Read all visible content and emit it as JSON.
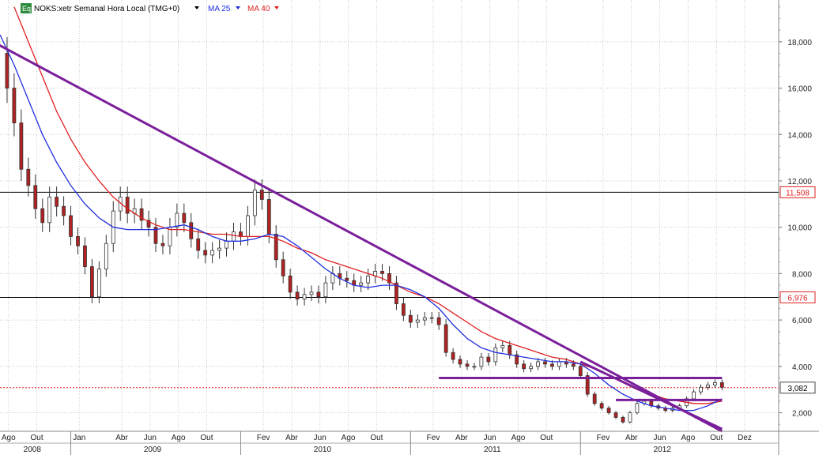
{
  "header": {
    "badge": "Eq",
    "title": "NOKS:xetr Semanal Hora Local (TMG+0)",
    "ma25_label": "MA 25",
    "ma40_label": "MA 40"
  },
  "colors": {
    "ma25": "#2030e0",
    "ma40": "#e02020",
    "trendline": "#7a1f9a",
    "candle_up": "#ffffff",
    "candle_down": "#b22222",
    "grid": "#c8c8c8",
    "hline": "#000000",
    "price_tag_red": "#e02020",
    "badge_bg": "#2e8b3e"
  },
  "chart_data": {
    "type": "line",
    "title": "NOKS:xetr Semanal Hora Local (TMG+0)",
    "ylim": [
      1.2,
      19.8
    ],
    "y_ticks": [
      "2,000",
      "4,000",
      "6,000",
      "8,000",
      "10,000",
      "12,000",
      "14,000",
      "16,000",
      "18,000"
    ],
    "month_ticks": [
      {
        "label": "Ago",
        "t": 0.6
      },
      {
        "label": "Out",
        "t": 2.6
      },
      {
        "label": "Jan",
        "t": 5.6
      },
      {
        "label": "Abr",
        "t": 8.6
      },
      {
        "label": "Jun",
        "t": 10.6
      },
      {
        "label": "Ago",
        "t": 12.6
      },
      {
        "label": "Out",
        "t": 14.6
      },
      {
        "label": "Fev",
        "t": 18.6
      },
      {
        "label": "Abr",
        "t": 20.6
      },
      {
        "label": "Jun",
        "t": 22.6
      },
      {
        "label": "Ago",
        "t": 24.6
      },
      {
        "label": "Out",
        "t": 26.6
      },
      {
        "label": "Fev",
        "t": 30.6
      },
      {
        "label": "Abr",
        "t": 32.6
      },
      {
        "label": "Jun",
        "t": 34.6
      },
      {
        "label": "Ago",
        "t": 36.6
      },
      {
        "label": "Out",
        "t": 38.6
      },
      {
        "label": "Fev",
        "t": 42.6
      },
      {
        "label": "Abr",
        "t": 44.6
      },
      {
        "label": "Jun",
        "t": 46.6
      },
      {
        "label": "Ago",
        "t": 48.6
      },
      {
        "label": "Out",
        "t": 50.6
      },
      {
        "label": "Dez",
        "t": 52.6
      }
    ],
    "year_ticks": [
      {
        "label": "2008",
        "t": 2.5
      },
      {
        "label": "2009",
        "t": 11.0
      },
      {
        "label": "2010",
        "t": 23.0
      },
      {
        "label": "2011",
        "t": 35.0
      },
      {
        "label": "2012",
        "t": 47.0
      }
    ],
    "year_dividers": [
      5.0,
      17.0,
      29.0,
      41.0
    ],
    "t_range": [
      0,
      55
    ],
    "price_series": [
      {
        "t": 0.0,
        "v": 17.5
      },
      {
        "t": 0.5,
        "v": 16.0
      },
      {
        "t": 1.0,
        "v": 14.5
      },
      {
        "t": 1.5,
        "v": 12.5
      },
      {
        "t": 2.0,
        "v": 11.8
      },
      {
        "t": 2.5,
        "v": 10.8
      },
      {
        "t": 3.0,
        "v": 10.2
      },
      {
        "t": 3.5,
        "v": 11.3
      },
      {
        "t": 4.0,
        "v": 10.9
      },
      {
        "t": 4.5,
        "v": 10.5
      },
      {
        "t": 5.0,
        "v": 9.6
      },
      {
        "t": 5.5,
        "v": 9.2
      },
      {
        "t": 6.0,
        "v": 8.3
      },
      {
        "t": 6.5,
        "v": 7.0
      },
      {
        "t": 7.0,
        "v": 8.2
      },
      {
        "t": 7.5,
        "v": 9.3
      },
      {
        "t": 8.0,
        "v": 10.7
      },
      {
        "t": 8.5,
        "v": 11.3
      },
      {
        "t": 9.0,
        "v": 10.6
      },
      {
        "t": 9.5,
        "v": 10.8
      },
      {
        "t": 10.0,
        "v": 10.3
      },
      {
        "t": 10.5,
        "v": 10.0
      },
      {
        "t": 11.0,
        "v": 9.3
      },
      {
        "t": 11.5,
        "v": 9.2
      },
      {
        "t": 12.0,
        "v": 10.0
      },
      {
        "t": 12.5,
        "v": 10.6
      },
      {
        "t": 13.0,
        "v": 10.2
      },
      {
        "t": 13.5,
        "v": 9.5
      },
      {
        "t": 14.0,
        "v": 9.0
      },
      {
        "t": 14.5,
        "v": 8.8
      },
      {
        "t": 15.0,
        "v": 9.0
      },
      {
        "t": 15.5,
        "v": 9.1
      },
      {
        "t": 16.0,
        "v": 9.4
      },
      {
        "t": 16.5,
        "v": 9.8
      },
      {
        "t": 17.0,
        "v": 9.6
      },
      {
        "t": 17.5,
        "v": 10.5
      },
      {
        "t": 18.0,
        "v": 11.6
      },
      {
        "t": 18.5,
        "v": 11.2
      },
      {
        "t": 19.0,
        "v": 9.7
      },
      {
        "t": 19.5,
        "v": 8.6
      },
      {
        "t": 20.0,
        "v": 7.9
      },
      {
        "t": 20.5,
        "v": 7.2
      },
      {
        "t": 21.0,
        "v": 6.9
      },
      {
        "t": 21.5,
        "v": 7.1
      },
      {
        "t": 22.0,
        "v": 7.2
      },
      {
        "t": 22.5,
        "v": 7.0
      },
      {
        "t": 23.0,
        "v": 7.6
      },
      {
        "t": 23.5,
        "v": 8.0
      },
      {
        "t": 24.0,
        "v": 7.8
      },
      {
        "t": 24.5,
        "v": 7.7
      },
      {
        "t": 25.0,
        "v": 7.5
      },
      {
        "t": 25.5,
        "v": 7.6
      },
      {
        "t": 26.0,
        "v": 7.9
      },
      {
        "t": 26.5,
        "v": 8.1
      },
      {
        "t": 27.0,
        "v": 8.0
      },
      {
        "t": 27.5,
        "v": 7.6
      },
      {
        "t": 28.0,
        "v": 6.7
      },
      {
        "t": 28.5,
        "v": 6.2
      },
      {
        "t": 29.0,
        "v": 5.9
      },
      {
        "t": 29.5,
        "v": 6.0
      },
      {
        "t": 30.0,
        "v": 6.1
      },
      {
        "t": 30.5,
        "v": 6.1
      },
      {
        "t": 31.0,
        "v": 5.8
      },
      {
        "t": 31.5,
        "v": 4.6
      },
      {
        "t": 32.0,
        "v": 4.3
      },
      {
        "t": 32.5,
        "v": 4.1
      },
      {
        "t": 33.0,
        "v": 4.0
      },
      {
        "t": 33.5,
        "v": 4.0
      },
      {
        "t": 34.0,
        "v": 4.4
      },
      {
        "t": 34.5,
        "v": 4.2
      },
      {
        "t": 35.0,
        "v": 4.8
      },
      {
        "t": 35.5,
        "v": 4.9
      },
      {
        "t": 36.0,
        "v": 4.5
      },
      {
        "t": 36.5,
        "v": 4.1
      },
      {
        "t": 37.0,
        "v": 3.9
      },
      {
        "t": 37.5,
        "v": 4.0
      },
      {
        "t": 38.0,
        "v": 4.2
      },
      {
        "t": 38.5,
        "v": 4.1
      },
      {
        "t": 39.0,
        "v": 4.0
      },
      {
        "t": 39.5,
        "v": 4.2
      },
      {
        "t": 40.0,
        "v": 4.1
      },
      {
        "t": 40.5,
        "v": 4.0
      },
      {
        "t": 41.0,
        "v": 3.6
      },
      {
        "t": 41.5,
        "v": 2.8
      },
      {
        "t": 42.0,
        "v": 2.4
      },
      {
        "t": 42.5,
        "v": 2.2
      },
      {
        "t": 43.0,
        "v": 2.0
      },
      {
        "t": 43.5,
        "v": 1.8
      },
      {
        "t": 44.0,
        "v": 1.6
      },
      {
        "t": 44.5,
        "v": 2.0
      },
      {
        "t": 45.0,
        "v": 2.4
      },
      {
        "t": 45.5,
        "v": 2.5
      },
      {
        "t": 46.0,
        "v": 2.3
      },
      {
        "t": 46.5,
        "v": 2.2
      },
      {
        "t": 47.0,
        "v": 2.1
      },
      {
        "t": 47.5,
        "v": 2.2
      },
      {
        "t": 48.0,
        "v": 2.3
      },
      {
        "t": 48.5,
        "v": 2.6
      },
      {
        "t": 49.0,
        "v": 2.9
      },
      {
        "t": 49.5,
        "v": 3.1
      },
      {
        "t": 50.0,
        "v": 3.2
      },
      {
        "t": 50.5,
        "v": 3.3
      },
      {
        "t": 51.0,
        "v": 3.1
      }
    ],
    "ma25": [
      {
        "t": 0.0,
        "v": 18.3
      },
      {
        "t": 1.0,
        "v": 17.0
      },
      {
        "t": 2.0,
        "v": 15.5
      },
      {
        "t": 3.0,
        "v": 14.0
      },
      {
        "t": 4.0,
        "v": 12.8
      },
      {
        "t": 5.0,
        "v": 11.8
      },
      {
        "t": 6.0,
        "v": 11.0
      },
      {
        "t": 7.0,
        "v": 10.4
      },
      {
        "t": 8.0,
        "v": 10.0
      },
      {
        "t": 9.0,
        "v": 9.9
      },
      {
        "t": 10.0,
        "v": 9.9
      },
      {
        "t": 11.0,
        "v": 9.9
      },
      {
        "t": 12.0,
        "v": 10.0
      },
      {
        "t": 13.0,
        "v": 10.1
      },
      {
        "t": 14.0,
        "v": 9.9
      },
      {
        "t": 15.0,
        "v": 9.6
      },
      {
        "t": 16.0,
        "v": 9.4
      },
      {
        "t": 17.0,
        "v": 9.4
      },
      {
        "t": 18.0,
        "v": 9.5
      },
      {
        "t": 19.0,
        "v": 9.7
      },
      {
        "t": 20.0,
        "v": 9.6
      },
      {
        "t": 21.0,
        "v": 9.2
      },
      {
        "t": 22.0,
        "v": 8.7
      },
      {
        "t": 23.0,
        "v": 8.2
      },
      {
        "t": 24.0,
        "v": 7.8
      },
      {
        "t": 25.0,
        "v": 7.5
      },
      {
        "t": 26.0,
        "v": 7.4
      },
      {
        "t": 27.0,
        "v": 7.5
      },
      {
        "t": 28.0,
        "v": 7.5
      },
      {
        "t": 29.0,
        "v": 7.3
      },
      {
        "t": 30.0,
        "v": 7.0
      },
      {
        "t": 31.0,
        "v": 6.5
      },
      {
        "t": 32.0,
        "v": 5.8
      },
      {
        "t": 33.0,
        "v": 5.2
      },
      {
        "t": 34.0,
        "v": 4.8
      },
      {
        "t": 35.0,
        "v": 4.6
      },
      {
        "t": 36.0,
        "v": 4.5
      },
      {
        "t": 37.0,
        "v": 4.4
      },
      {
        "t": 38.0,
        "v": 4.3
      },
      {
        "t": 39.0,
        "v": 4.2
      },
      {
        "t": 40.0,
        "v": 4.2
      },
      {
        "t": 41.0,
        "v": 4.1
      },
      {
        "t": 42.0,
        "v": 3.7
      },
      {
        "t": 43.0,
        "v": 3.2
      },
      {
        "t": 44.0,
        "v": 2.8
      },
      {
        "t": 45.0,
        "v": 2.5
      },
      {
        "t": 46.0,
        "v": 2.3
      },
      {
        "t": 47.0,
        "v": 2.2
      },
      {
        "t": 48.0,
        "v": 2.1
      },
      {
        "t": 49.0,
        "v": 2.1
      },
      {
        "t": 50.0,
        "v": 2.3
      },
      {
        "t": 51.0,
        "v": 2.6
      }
    ],
    "ma40": [
      {
        "t": 1.0,
        "v": 19.5
      },
      {
        "t": 2.0,
        "v": 18.0
      },
      {
        "t": 3.0,
        "v": 16.5
      },
      {
        "t": 4.0,
        "v": 15.0
      },
      {
        "t": 5.0,
        "v": 13.8
      },
      {
        "t": 6.0,
        "v": 12.8
      },
      {
        "t": 7.0,
        "v": 12.0
      },
      {
        "t": 8.0,
        "v": 11.3
      },
      {
        "t": 9.0,
        "v": 10.8
      },
      {
        "t": 10.0,
        "v": 10.4
      },
      {
        "t": 11.0,
        "v": 10.1
      },
      {
        "t": 12.0,
        "v": 9.9
      },
      {
        "t": 13.0,
        "v": 9.9
      },
      {
        "t": 14.0,
        "v": 9.8
      },
      {
        "t": 15.0,
        "v": 9.7
      },
      {
        "t": 16.0,
        "v": 9.7
      },
      {
        "t": 17.0,
        "v": 9.6
      },
      {
        "t": 18.0,
        "v": 9.6
      },
      {
        "t": 19.0,
        "v": 9.6
      },
      {
        "t": 20.0,
        "v": 9.4
      },
      {
        "t": 21.0,
        "v": 9.1
      },
      {
        "t": 22.0,
        "v": 8.9
      },
      {
        "t": 23.0,
        "v": 8.6
      },
      {
        "t": 24.0,
        "v": 8.4
      },
      {
        "t": 25.0,
        "v": 8.2
      },
      {
        "t": 26.0,
        "v": 8.0
      },
      {
        "t": 27.0,
        "v": 7.8
      },
      {
        "t": 28.0,
        "v": 7.5
      },
      {
        "t": 29.0,
        "v": 7.2
      },
      {
        "t": 30.0,
        "v": 7.0
      },
      {
        "t": 31.0,
        "v": 6.7
      },
      {
        "t": 32.0,
        "v": 6.3
      },
      {
        "t": 33.0,
        "v": 5.9
      },
      {
        "t": 34.0,
        "v": 5.5
      },
      {
        "t": 35.0,
        "v": 5.2
      },
      {
        "t": 36.0,
        "v": 5.0
      },
      {
        "t": 37.0,
        "v": 4.8
      },
      {
        "t": 38.0,
        "v": 4.6
      },
      {
        "t": 39.0,
        "v": 4.4
      },
      {
        "t": 40.0,
        "v": 4.3
      },
      {
        "t": 41.0,
        "v": 4.1
      },
      {
        "t": 42.0,
        "v": 3.9
      },
      {
        "t": 43.0,
        "v": 3.6
      },
      {
        "t": 44.0,
        "v": 3.3
      },
      {
        "t": 45.0,
        "v": 3.0
      },
      {
        "t": 46.0,
        "v": 2.8
      },
      {
        "t": 47.0,
        "v": 2.6
      },
      {
        "t": 48.0,
        "v": 2.5
      },
      {
        "t": 49.0,
        "v": 2.4
      },
      {
        "t": 50.0,
        "v": 2.4
      },
      {
        "t": 51.0,
        "v": 2.5
      }
    ],
    "trendlines": [
      {
        "name": "long-downtrend",
        "from": {
          "t": -0.5,
          "v": 18.0
        },
        "to": {
          "t": 51.0,
          "v": 1.2
        }
      },
      {
        "name": "short-downtrend",
        "from": {
          "t": 41.0,
          "v": 4.2
        },
        "to": {
          "t": 51.0,
          "v": 1.3
        }
      }
    ],
    "support_lines": [
      {
        "name": "support-3-5",
        "from_t": 31.0,
        "to_t": 51.0,
        "v": 3.5
      },
      {
        "name": "support-2-5",
        "from_t": 43.5,
        "to_t": 51.0,
        "v": 2.55
      }
    ],
    "horizontal_levels": [
      {
        "name": "level-11508",
        "v": 11.508,
        "label": "11,508"
      },
      {
        "name": "level-6976",
        "v": 6.976,
        "label": "6,976"
      }
    ],
    "current_price": {
      "v": 3.082,
      "label": "3,082"
    }
  }
}
